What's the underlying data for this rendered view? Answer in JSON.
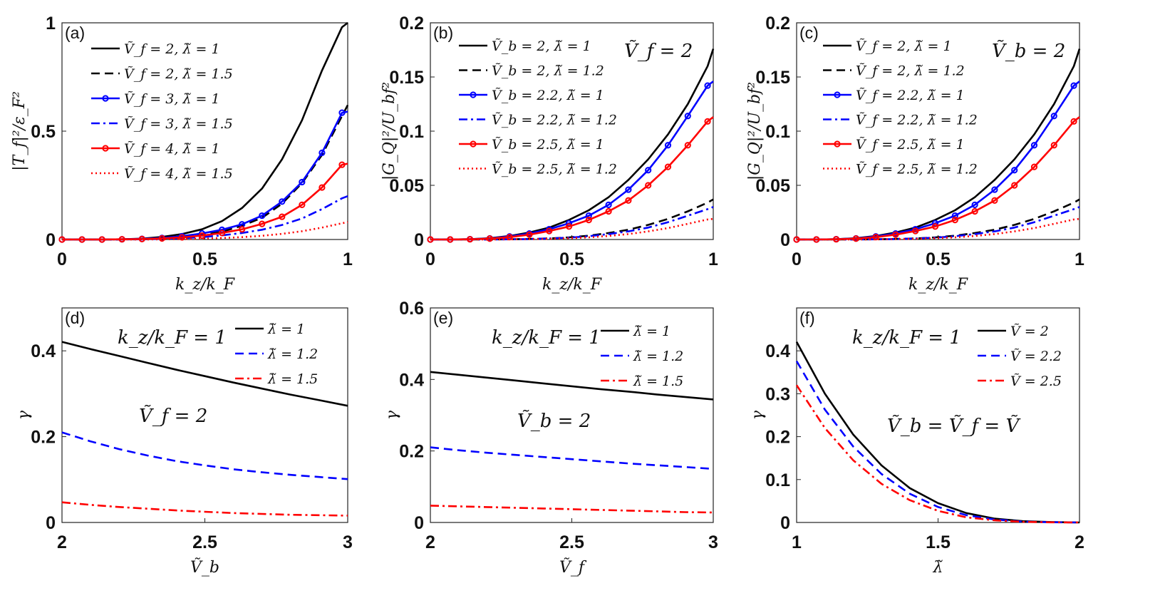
{
  "chart_data": [
    {
      "id": "a",
      "type": "line",
      "panel_label": "(a)",
      "xlabel": "k_z/k_F",
      "ylabel": "|T_f|²/ε_F²",
      "xlim": [
        0,
        1
      ],
      "ylim": [
        0,
        1
      ],
      "xticks": [
        "0",
        "0.5",
        "1"
      ],
      "yticks": [
        "0",
        "0.5",
        "1"
      ],
      "annotation": "",
      "x": [
        0,
        0.07,
        0.14,
        0.21,
        0.28,
        0.35,
        0.42,
        0.49,
        0.56,
        0.63,
        0.7,
        0.77,
        0.84,
        0.91,
        0.98,
        1.0
      ],
      "series": [
        {
          "name": "Ṽ_f = 2, λ̃ = 1",
          "color": "#000000",
          "style": "solid",
          "markers": false,
          "values": [
            0,
            0,
            0,
            0.001,
            0.004,
            0.012,
            0.025,
            0.047,
            0.085,
            0.145,
            0.235,
            0.37,
            0.55,
            0.78,
            0.98,
            1.0
          ]
        },
        {
          "name": "Ṽ_f = 2, λ̃ = 1.5",
          "color": "#000000",
          "style": "dashed",
          "markers": false,
          "values": [
            0,
            0,
            0,
            0,
            0.001,
            0.004,
            0.009,
            0.02,
            0.036,
            0.063,
            0.1,
            0.165,
            0.26,
            0.39,
            0.57,
            0.62
          ]
        },
        {
          "name": "Ṽ_f = 3, λ̃ = 1",
          "color": "#0000ff",
          "style": "solid",
          "markers": true,
          "values": [
            0,
            0,
            0,
            0.001,
            0.003,
            0.007,
            0.015,
            0.028,
            0.045,
            0.07,
            0.11,
            0.175,
            0.265,
            0.4,
            0.585,
            0.59
          ]
        },
        {
          "name": "Ṽ_f = 3, λ̃ = 1.5",
          "color": "#0000ff",
          "style": "dashdot",
          "markers": false,
          "values": [
            0,
            0,
            0,
            0,
            0.001,
            0.003,
            0.006,
            0.011,
            0.019,
            0.03,
            0.045,
            0.067,
            0.097,
            0.14,
            0.19,
            0.2
          ]
        },
        {
          "name": "Ṽ_f = 4, λ̃ = 1",
          "color": "#ff0000",
          "style": "solid",
          "markers": true,
          "values": [
            0,
            0,
            0,
            0.001,
            0.002,
            0.005,
            0.01,
            0.018,
            0.03,
            0.047,
            0.072,
            0.105,
            0.16,
            0.24,
            0.345,
            0.35
          ]
        },
        {
          "name": "Ṽ_f = 4, λ̃ = 1.5",
          "color": "#ff0000",
          "style": "dotted",
          "markers": false,
          "values": [
            0,
            0,
            0,
            0,
            0,
            0.001,
            0.002,
            0.004,
            0.007,
            0.011,
            0.017,
            0.026,
            0.038,
            0.055,
            0.075,
            0.08
          ]
        }
      ]
    },
    {
      "id": "b",
      "type": "line",
      "panel_label": "(b)",
      "xlabel": "k_z/k_F",
      "ylabel": "|G_Q|²/U_bf²",
      "xlim": [
        0,
        1
      ],
      "ylim": [
        0,
        0.2
      ],
      "xticks": [
        "0",
        "0.5",
        "1"
      ],
      "yticks": [
        "0",
        "0.05",
        "0.1",
        "0.15",
        "0.2"
      ],
      "annotation": "Ṽ_f = 2",
      "x": [
        0,
        0.07,
        0.14,
        0.21,
        0.28,
        0.35,
        0.42,
        0.49,
        0.56,
        0.63,
        0.7,
        0.77,
        0.84,
        0.91,
        0.98,
        1.0
      ],
      "series": [
        {
          "name": "Ṽ_b = 2, λ̃ = 1",
          "color": "#000000",
          "style": "solid",
          "markers": false,
          "values": [
            0,
            0,
            0.0003,
            0.0012,
            0.0032,
            0.0065,
            0.011,
            0.018,
            0.027,
            0.039,
            0.055,
            0.074,
            0.097,
            0.125,
            0.16,
            0.176
          ]
        },
        {
          "name": "Ṽ_b = 2, λ̃ = 1.2",
          "color": "#000000",
          "style": "dashed",
          "markers": false,
          "values": [
            0,
            0,
            0,
            0,
            0.0002,
            0.0005,
            0.001,
            0.002,
            0.0035,
            0.006,
            0.009,
            0.0135,
            0.019,
            0.026,
            0.034,
            0.037
          ]
        },
        {
          "name": "Ṽ_b = 2.2, λ̃ = 1",
          "color": "#0000ff",
          "style": "solid",
          "markers": true,
          "values": [
            0,
            0,
            0.0003,
            0.001,
            0.0028,
            0.0055,
            0.0095,
            0.015,
            0.022,
            0.032,
            0.046,
            0.064,
            0.087,
            0.114,
            0.142,
            0.146
          ]
        },
        {
          "name": "Ṽ_b = 2.2, λ̃ = 1.2",
          "color": "#0000ff",
          "style": "dashdot",
          "markers": false,
          "values": [
            0,
            0,
            0,
            0,
            0.0002,
            0.0004,
            0.0009,
            0.0017,
            0.003,
            0.005,
            0.0075,
            0.011,
            0.016,
            0.022,
            0.028,
            0.03
          ]
        },
        {
          "name": "Ṽ_b = 2.5, λ̃ = 1",
          "color": "#ff0000",
          "style": "solid",
          "markers": true,
          "values": [
            0,
            0,
            0.0002,
            0.0008,
            0.0022,
            0.0045,
            0.0078,
            0.012,
            0.018,
            0.026,
            0.036,
            0.05,
            0.067,
            0.087,
            0.109,
            0.113
          ]
        },
        {
          "name": "Ṽ_b = 2.5, λ̃ = 1.2",
          "color": "#ff0000",
          "style": "dotted",
          "markers": false,
          "values": [
            0,
            0,
            0,
            0,
            0.0001,
            0.0003,
            0.0006,
            0.0012,
            0.002,
            0.0033,
            0.005,
            0.0075,
            0.0105,
            0.0145,
            0.0185,
            0.019
          ]
        }
      ]
    },
    {
      "id": "c",
      "type": "line",
      "panel_label": "(c)",
      "xlabel": "k_z/k_F",
      "ylabel": "|G_Q|²/U_bf²",
      "xlim": [
        0,
        1
      ],
      "ylim": [
        0,
        0.2
      ],
      "xticks": [
        "0",
        "0.5",
        "1"
      ],
      "yticks": [
        "0",
        "0.05",
        "0.1",
        "0.15",
        "0.2"
      ],
      "annotation": "Ṽ_b = 2",
      "x": [
        0,
        0.07,
        0.14,
        0.21,
        0.28,
        0.35,
        0.42,
        0.49,
        0.56,
        0.63,
        0.7,
        0.77,
        0.84,
        0.91,
        0.98,
        1.0
      ],
      "series": [
        {
          "name": "Ṽ_f = 2, λ̃ = 1",
          "color": "#000000",
          "style": "solid",
          "markers": false,
          "values": [
            0,
            0,
            0.0003,
            0.0012,
            0.0032,
            0.0065,
            0.011,
            0.018,
            0.027,
            0.039,
            0.055,
            0.074,
            0.097,
            0.125,
            0.16,
            0.176
          ]
        },
        {
          "name": "Ṽ_f = 2, λ̃ = 1.2",
          "color": "#000000",
          "style": "dashed",
          "markers": false,
          "values": [
            0,
            0,
            0,
            0,
            0.0002,
            0.0005,
            0.001,
            0.002,
            0.0035,
            0.006,
            0.009,
            0.0135,
            0.019,
            0.026,
            0.034,
            0.037
          ]
        },
        {
          "name": "Ṽ_f = 2.2, λ̃ = 1",
          "color": "#0000ff",
          "style": "solid",
          "markers": true,
          "values": [
            0,
            0,
            0.0003,
            0.001,
            0.0028,
            0.0055,
            0.0095,
            0.015,
            0.022,
            0.032,
            0.046,
            0.064,
            0.087,
            0.114,
            0.142,
            0.146
          ]
        },
        {
          "name": "Ṽ_f = 2.2, λ̃ = 1.2",
          "color": "#0000ff",
          "style": "dashdot",
          "markers": false,
          "values": [
            0,
            0,
            0,
            0,
            0.0002,
            0.0004,
            0.0009,
            0.0017,
            0.003,
            0.005,
            0.0075,
            0.011,
            0.016,
            0.022,
            0.028,
            0.03
          ]
        },
        {
          "name": "Ṽ_f = 2.5, λ̃ = 1",
          "color": "#ff0000",
          "style": "solid",
          "markers": true,
          "values": [
            0,
            0,
            0.0002,
            0.0008,
            0.0022,
            0.0045,
            0.0078,
            0.012,
            0.018,
            0.026,
            0.036,
            0.05,
            0.067,
            0.087,
            0.109,
            0.113
          ]
        },
        {
          "name": "Ṽ_f = 2.5, λ̃ = 1.2",
          "color": "#ff0000",
          "style": "dotted",
          "markers": false,
          "values": [
            0,
            0,
            0,
            0,
            0.0001,
            0.0003,
            0.0006,
            0.0012,
            0.002,
            0.0033,
            0.005,
            0.0075,
            0.0105,
            0.0145,
            0.0185,
            0.019
          ]
        }
      ]
    },
    {
      "id": "d",
      "type": "line",
      "panel_label": "(d)",
      "xlabel": "Ṽ_b",
      "ylabel": "γ",
      "xlim": [
        2,
        3
      ],
      "ylim": [
        0,
        0.5
      ],
      "xticks": [
        "2",
        "2.5",
        "3"
      ],
      "yticks": [
        "0",
        "0.2",
        "0.4"
      ],
      "annotation": "k_z/k_F = 1",
      "annotation2": "Ṽ_f = 2",
      "x": [
        2,
        2.1,
        2.2,
        2.3,
        2.4,
        2.5,
        2.6,
        2.7,
        2.8,
        2.9,
        3.0
      ],
      "series": [
        {
          "name": "λ̃ = 1",
          "color": "#000000",
          "style": "solid",
          "markers": false,
          "values": [
            0.421,
            0.404,
            0.388,
            0.372,
            0.356,
            0.341,
            0.326,
            0.312,
            0.298,
            0.285,
            0.272
          ]
        },
        {
          "name": "λ̃ = 1.2",
          "color": "#0000ff",
          "style": "dashed",
          "markers": false,
          "values": [
            0.21,
            0.189,
            0.171,
            0.156,
            0.143,
            0.133,
            0.124,
            0.117,
            0.111,
            0.106,
            0.101
          ]
        },
        {
          "name": "λ̃ = 1.5",
          "color": "#ff0000",
          "style": "dashdot",
          "markers": false,
          "values": [
            0.047,
            0.041,
            0.036,
            0.032,
            0.028,
            0.025,
            0.022,
            0.02,
            0.018,
            0.017,
            0.016
          ]
        }
      ]
    },
    {
      "id": "e",
      "type": "line",
      "panel_label": "(e)",
      "xlabel": "Ṽ_f",
      "ylabel": "γ",
      "xlim": [
        2,
        3
      ],
      "ylim": [
        0,
        0.6
      ],
      "xticks": [
        "2",
        "2.5",
        "3"
      ],
      "yticks": [
        "0",
        "0.2",
        "0.4",
        "0.6"
      ],
      "annotation": "k_z/k_F = 1",
      "annotation2": "Ṽ_b = 2",
      "x": [
        2,
        2.1,
        2.2,
        2.3,
        2.4,
        2.5,
        2.6,
        2.7,
        2.8,
        2.9,
        3.0
      ],
      "series": [
        {
          "name": "λ̃ = 1",
          "color": "#000000",
          "style": "solid",
          "markers": false,
          "values": [
            0.421,
            0.413,
            0.405,
            0.397,
            0.389,
            0.381,
            0.373,
            0.366,
            0.358,
            0.351,
            0.344
          ]
        },
        {
          "name": "λ̃ = 1.2",
          "color": "#0000ff",
          "style": "dashed",
          "markers": false,
          "values": [
            0.21,
            0.202,
            0.195,
            0.189,
            0.183,
            0.177,
            0.171,
            0.165,
            0.16,
            0.155,
            0.15
          ]
        },
        {
          "name": "λ̃ = 1.5",
          "color": "#ff0000",
          "style": "dashdot",
          "markers": false,
          "values": [
            0.047,
            0.045,
            0.043,
            0.041,
            0.039,
            0.037,
            0.035,
            0.033,
            0.031,
            0.029,
            0.028
          ]
        }
      ]
    },
    {
      "id": "f",
      "type": "line",
      "panel_label": "(f)",
      "xlabel": "λ̃",
      "ylabel": "γ",
      "xlim": [
        1,
        2
      ],
      "ylim": [
        0,
        0.5
      ],
      "xticks": [
        "1",
        "1.5",
        "2"
      ],
      "yticks": [
        "0",
        "0.1",
        "0.2",
        "0.3",
        "0.4"
      ],
      "annotation": "k_z/k_F = 1",
      "annotation2": "Ṽ_b = Ṽ_f = Ṽ",
      "x": [
        1,
        1.1,
        1.2,
        1.3,
        1.4,
        1.5,
        1.6,
        1.7,
        1.8,
        1.9,
        2.0
      ],
      "series": [
        {
          "name": "Ṽ = 2",
          "color": "#000000",
          "style": "solid",
          "markers": false,
          "values": [
            0.421,
            0.3,
            0.205,
            0.133,
            0.08,
            0.045,
            0.022,
            0.009,
            0.003,
            0.001,
            0
          ]
        },
        {
          "name": "Ṽ = 2.2",
          "color": "#0000ff",
          "style": "dashed",
          "markers": false,
          "values": [
            0.376,
            0.263,
            0.177,
            0.113,
            0.067,
            0.036,
            0.017,
            0.007,
            0.002,
            0.0005,
            0
          ]
        },
        {
          "name": "Ṽ = 2.5",
          "color": "#ff0000",
          "style": "dashdot",
          "markers": false,
          "values": [
            0.32,
            0.22,
            0.145,
            0.09,
            0.052,
            0.027,
            0.012,
            0.005,
            0.0015,
            0.0003,
            0
          ]
        }
      ]
    }
  ]
}
